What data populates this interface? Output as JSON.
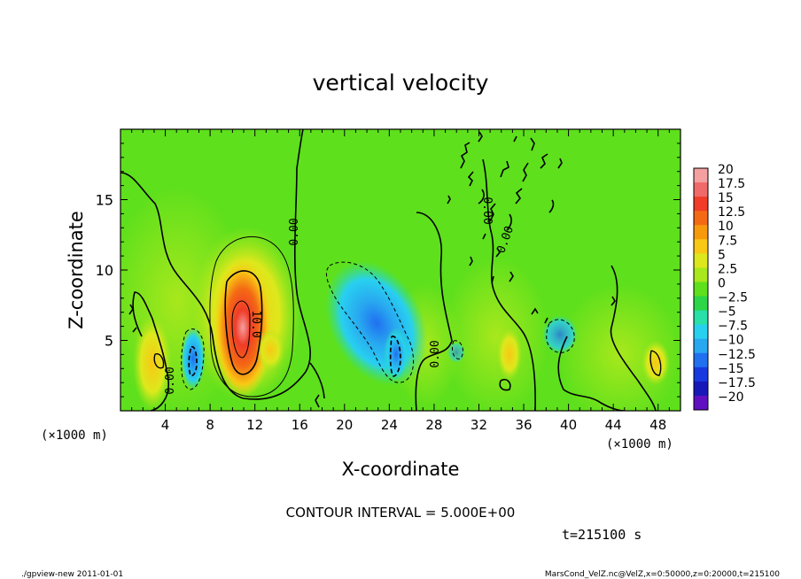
{
  "chart_data": {
    "type": "heatmap",
    "title": "vertical velocity",
    "xlabel": "X-coordinate",
    "ylabel": "Z-coordinate",
    "x_unit": "(×1000 m)",
    "y_unit": "(×1000 m)",
    "xlim": [
      0,
      50
    ],
    "ylim": [
      0,
      20
    ],
    "x_ticks": [
      4,
      8,
      12,
      16,
      20,
      24,
      28,
      32,
      36,
      40,
      44,
      48
    ],
    "y_ticks": [
      5,
      10,
      15
    ],
    "colorbar": {
      "levels": [
        "20",
        "17.5",
        "15",
        "12.5",
        "10",
        "7.5",
        "5",
        "2.5",
        "0",
        "−2.5",
        "−5",
        "−7.5",
        "−10",
        "−12.5",
        "−15",
        "−17.5",
        "−20"
      ],
      "colors": [
        "#f4a0a0",
        "#f06a6a",
        "#f03c28",
        "#f46a14",
        "#f69a0c",
        "#f8c814",
        "#dde81c",
        "#a8e81c",
        "#5ee01c",
        "#2cd648",
        "#28e0a8",
        "#28d0f0",
        "#28a8f0",
        "#2070f0",
        "#1838e0",
        "#1818b8",
        "#6010c0"
      ]
    },
    "features": [
      {
        "type": "max",
        "x": 10.5,
        "z": 6.5,
        "value": 18
      },
      {
        "type": "min",
        "x": 23.5,
        "z": 4.5,
        "value": -12
      },
      {
        "type": "min",
        "x": 6.5,
        "z": 3.0,
        "value": -10
      },
      {
        "type": "min",
        "x": 39.0,
        "z": 5.5,
        "value": -7
      }
    ],
    "contour_labels": [
      "0.00",
      "10.0",
      "0.00",
      "0.00",
      "0.00",
      "0.00"
    ],
    "contour_interval_text": "CONTOUR INTERVAL = 5.000E+00",
    "time_text": "t=215100 s"
  },
  "footer": {
    "left": "./gpview-new   2011-01-01",
    "right": "MarsCond_VelZ.nc@VelZ,x=0:50000,z=0:20000,t=215100"
  }
}
